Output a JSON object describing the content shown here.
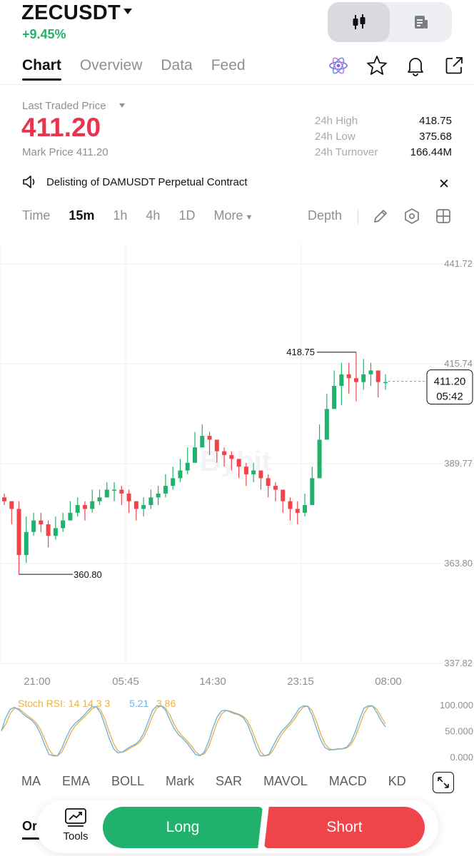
{
  "header": {
    "symbol": "ZECUSDT",
    "change": "+9.45%"
  },
  "view_toggle": [
    "candlestick-icon",
    "document-icon"
  ],
  "tabs": [
    {
      "label": "Chart",
      "active": true
    },
    {
      "label": "Overview",
      "active": false
    },
    {
      "label": "Data",
      "active": false
    },
    {
      "label": "Feed",
      "active": false
    }
  ],
  "price": {
    "ltp_label": "Last Traded Price",
    "ltp": "411.20",
    "mark": "Mark Price 411.20",
    "stats": [
      {
        "k": "24h High",
        "v": "418.75"
      },
      {
        "k": "24h Low",
        "v": "375.68"
      },
      {
        "k": "24h Turnover",
        "v": "166.44M"
      }
    ]
  },
  "notice": "Delisting of DAMUSDT Perpetual Contract",
  "toolbar": {
    "intervals": [
      {
        "label": "Time",
        "selected": false
      },
      {
        "label": "15m",
        "selected": true
      },
      {
        "label": "1h",
        "selected": false
      },
      {
        "label": "4h",
        "selected": false
      },
      {
        "label": "1D",
        "selected": false
      }
    ],
    "more": "More",
    "depth": "Depth"
  },
  "chart_data": {
    "type": "candlestick",
    "y_ticks": [
      "441.72",
      "415.74",
      "389.77",
      "363.80",
      "337.82"
    ],
    "ylim": [
      337.82,
      441.72
    ],
    "x_ticks": [
      "21:00",
      "05:45",
      "14:30",
      "23:15",
      "08:00"
    ],
    "high_label": "418.75",
    "low_label": "360.80",
    "last_price": "411.20",
    "countdown": "05:42",
    "watermark": "Bybit",
    "closes": [
      380,
      378,
      366,
      372,
      375,
      374,
      371,
      373,
      375,
      377,
      379,
      378,
      380,
      381,
      383,
      383,
      382,
      380,
      378,
      379,
      381,
      382,
      384,
      386,
      388,
      390,
      394,
      397,
      396,
      393,
      392,
      391,
      389,
      387,
      388,
      386,
      384,
      383,
      380,
      378,
      377,
      379,
      386,
      396,
      404,
      410,
      413,
      412,
      411,
      413,
      414,
      411,
      411
    ],
    "lows": [
      379,
      374,
      361,
      364,
      371,
      372,
      368,
      370,
      372,
      375,
      376,
      375,
      377,
      379,
      381,
      380,
      379,
      377,
      375,
      376,
      378,
      379,
      381,
      383,
      385,
      387,
      391,
      394,
      392,
      390,
      389,
      388,
      386,
      384,
      385,
      383,
      381,
      380,
      377,
      375,
      374,
      376,
      383,
      392,
      400,
      404,
      405,
      408,
      406,
      409,
      410,
      407,
      409
    ],
    "highs": [
      382,
      380,
      380,
      376,
      377,
      377,
      375,
      376,
      377,
      380,
      381,
      380,
      383,
      383,
      385,
      385,
      384,
      383,
      380,
      381,
      383,
      384,
      387,
      389,
      391,
      394,
      398,
      400,
      398,
      396,
      394,
      393,
      391,
      390,
      390,
      388,
      387,
      385,
      383,
      381,
      380,
      382,
      389,
      400,
      408,
      414,
      416,
      416,
      418.75,
      417,
      416,
      414,
      413
    ],
    "stoch_label": "Stoch RSI: 14 14 3 3",
    "stoch_k": "5.21",
    "stoch_d": "3.86",
    "stoch_ticks": [
      "100.000",
      "50.000",
      "0.000"
    ]
  },
  "indicators": [
    "MA",
    "EMA",
    "BOLL",
    "Mark",
    "SAR",
    "MAVOL",
    "MACD",
    "KD"
  ],
  "bottom": {
    "tab": "Or",
    "tools": "Tools",
    "long": "Long",
    "short": "Short"
  },
  "colors": {
    "up": "#20b26c",
    "down": "#ef454a",
    "stoch_k": "#6fb4e2",
    "stoch_d": "#e9b24a"
  }
}
